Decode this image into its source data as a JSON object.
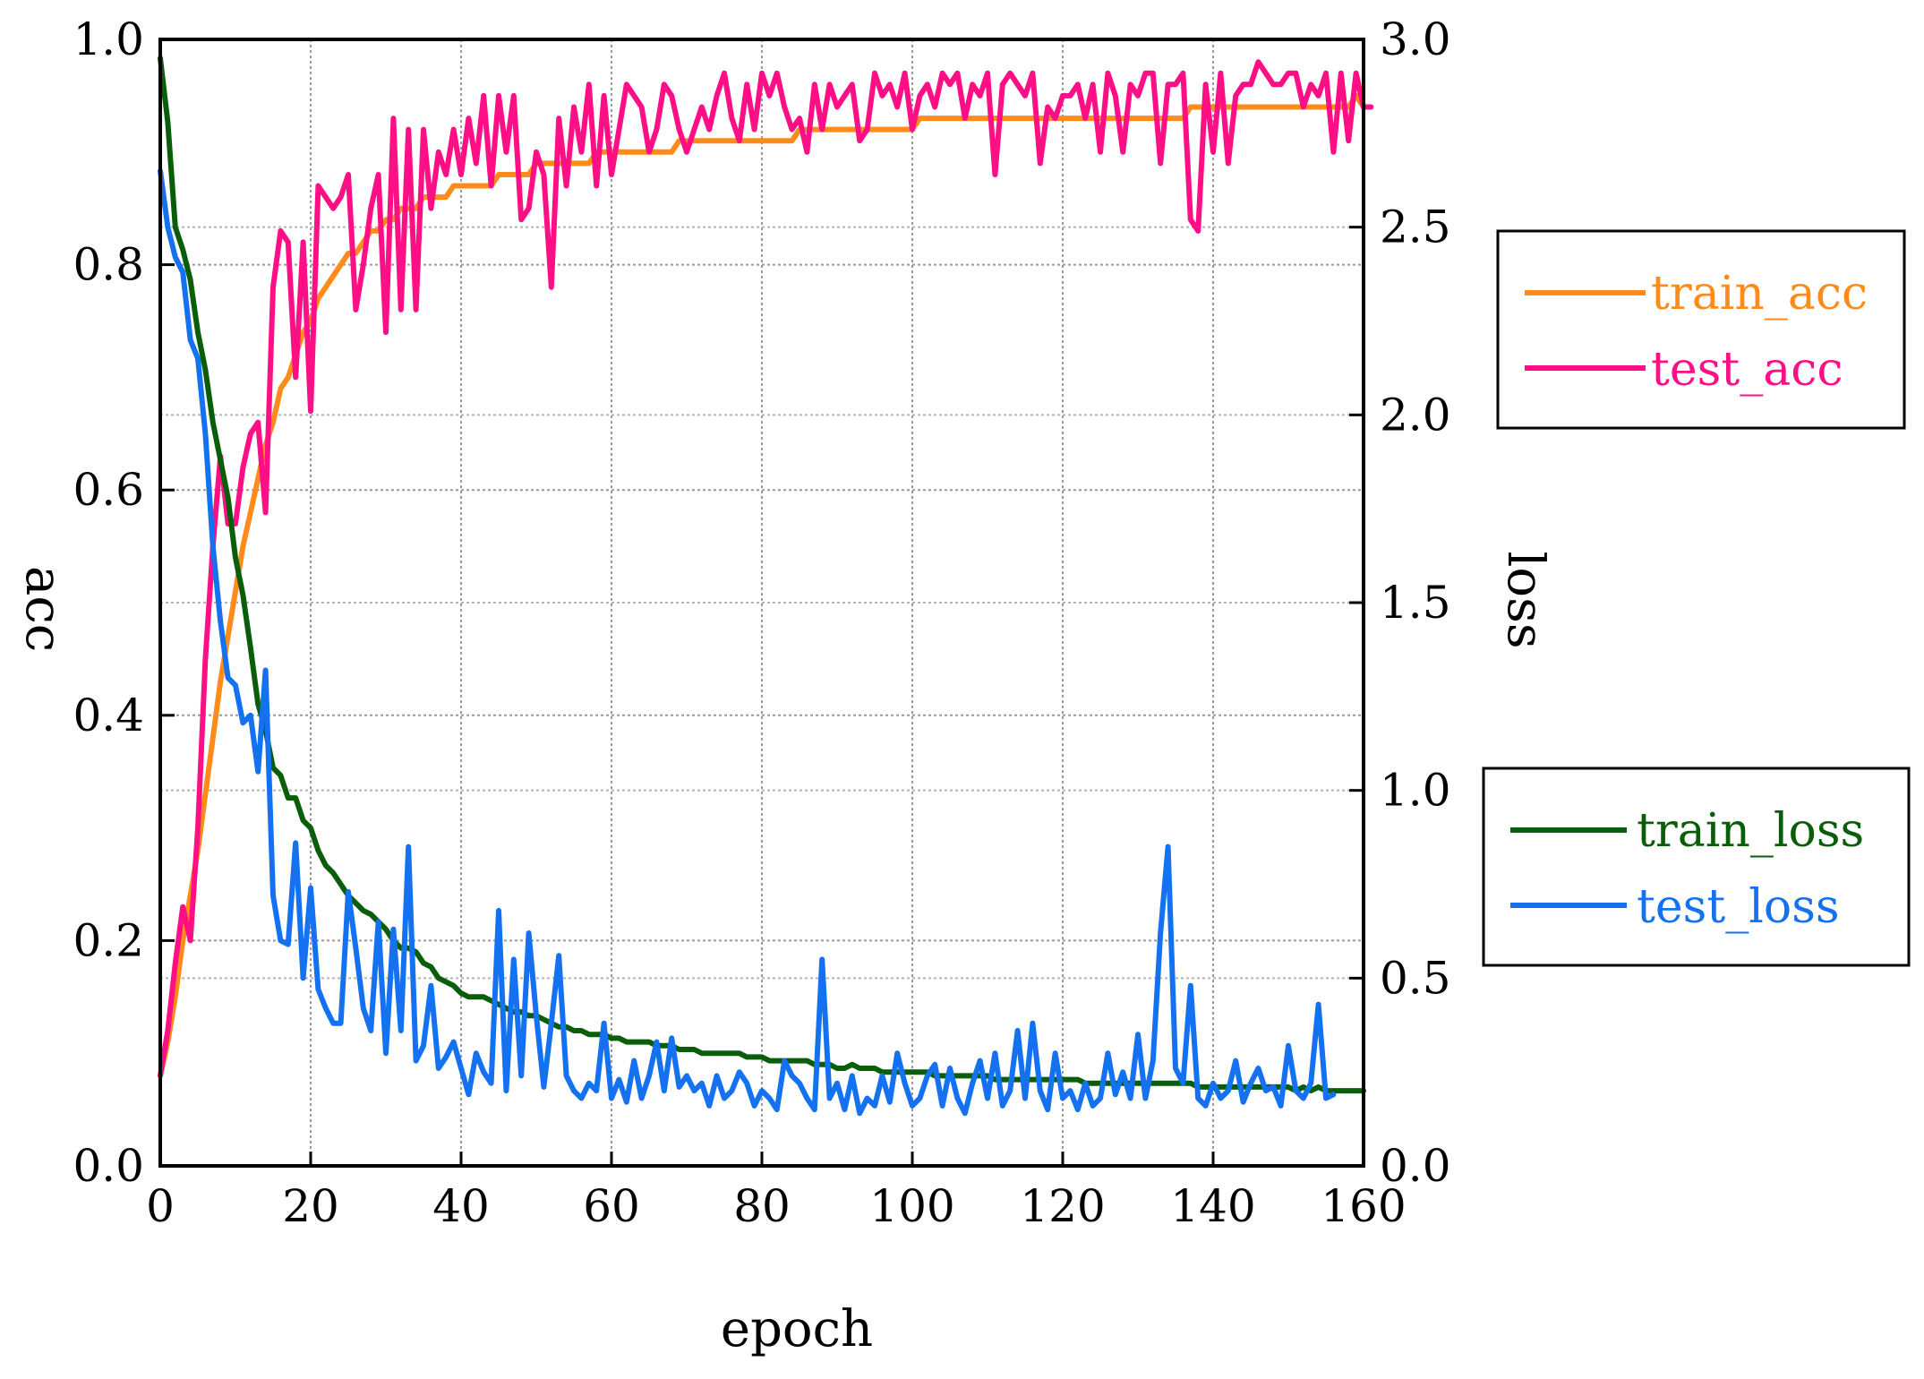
{
  "chart_data": {
    "type": "line",
    "xlabel": "epoch",
    "ylabel_left": "acc",
    "ylabel_right": "loss",
    "xlim": [
      0,
      160
    ],
    "ylim_left": [
      0,
      1
    ],
    "ylim_right": [
      0,
      3
    ],
    "x_ticks": [
      "0",
      "20",
      "40",
      "60",
      "80",
      "100",
      "120",
      "140",
      "160"
    ],
    "y_left_ticks": [
      "0.0",
      "0.2",
      "0.4",
      "0.6",
      "0.8",
      "1.0"
    ],
    "y_right_ticks": [
      "0.0",
      "0.5",
      "1.0",
      "1.5",
      "2.0",
      "2.5",
      "3.0"
    ],
    "grid": true,
    "legends": [
      {
        "position": "upper-right",
        "entries": [
          {
            "label": "train_acc",
            "color": "#ff8c1a"
          },
          {
            "label": "test_acc",
            "color": "#ff0f86"
          }
        ]
      },
      {
        "position": "lower-right",
        "entries": [
          {
            "label": "train_loss",
            "color": "#0a5e0a"
          },
          {
            "label": "test_loss",
            "color": "#1471f0"
          }
        ]
      }
    ],
    "series": [
      {
        "name": "train_acc",
        "axis": "left",
        "color": "#ff8c1a",
        "x_start": 0,
        "x_step": 1,
        "values": [
          0.08,
          0.11,
          0.15,
          0.2,
          0.24,
          0.28,
          0.33,
          0.38,
          0.43,
          0.47,
          0.51,
          0.55,
          0.58,
          0.61,
          0.64,
          0.66,
          0.69,
          0.7,
          0.72,
          0.74,
          0.75,
          0.77,
          0.78,
          0.79,
          0.8,
          0.81,
          0.81,
          0.82,
          0.83,
          0.83,
          0.84,
          0.84,
          0.85,
          0.85,
          0.85,
          0.86,
          0.86,
          0.86,
          0.86,
          0.87,
          0.87,
          0.87,
          0.87,
          0.87,
          0.87,
          0.88,
          0.88,
          0.88,
          0.88,
          0.88,
          0.89,
          0.89,
          0.89,
          0.89,
          0.89,
          0.89,
          0.89,
          0.89,
          0.9,
          0.9,
          0.9,
          0.9,
          0.9,
          0.9,
          0.9,
          0.9,
          0.9,
          0.9,
          0.9,
          0.91,
          0.91,
          0.91,
          0.91,
          0.91,
          0.91,
          0.91,
          0.91,
          0.91,
          0.91,
          0.91,
          0.91,
          0.91,
          0.91,
          0.91,
          0.91,
          0.92,
          0.92,
          0.92,
          0.92,
          0.92,
          0.92,
          0.92,
          0.92,
          0.92,
          0.92,
          0.92,
          0.92,
          0.92,
          0.92,
          0.92,
          0.92,
          0.93,
          0.93,
          0.93,
          0.93,
          0.93,
          0.93,
          0.93,
          0.93,
          0.93,
          0.93,
          0.93,
          0.93,
          0.93,
          0.93,
          0.93,
          0.93,
          0.93,
          0.93,
          0.93,
          0.93,
          0.93,
          0.93,
          0.93,
          0.93,
          0.93,
          0.93,
          0.93,
          0.93,
          0.93,
          0.93,
          0.93,
          0.93,
          0.93,
          0.93,
          0.93,
          0.93,
          0.94,
          0.94,
          0.94,
          0.94,
          0.94,
          0.94,
          0.94,
          0.94,
          0.94,
          0.94,
          0.94,
          0.94,
          0.94,
          0.94,
          0.94,
          0.94,
          0.94,
          0.94,
          0.94,
          0.94,
          0.94,
          0.94,
          0.95,
          0.94
        ]
      },
      {
        "name": "test_acc",
        "axis": "left",
        "color": "#ff0f86",
        "x_start": 0,
        "x_step": 1,
        "values": [
          0.08,
          0.12,
          0.18,
          0.23,
          0.2,
          0.3,
          0.45,
          0.55,
          0.63,
          0.57,
          0.57,
          0.62,
          0.65,
          0.66,
          0.58,
          0.78,
          0.83,
          0.82,
          0.7,
          0.82,
          0.67,
          0.87,
          0.86,
          0.85,
          0.86,
          0.88,
          0.76,
          0.8,
          0.85,
          0.88,
          0.74,
          0.93,
          0.76,
          0.92,
          0.76,
          0.92,
          0.85,
          0.9,
          0.88,
          0.92,
          0.88,
          0.93,
          0.89,
          0.95,
          0.87,
          0.95,
          0.9,
          0.95,
          0.84,
          0.85,
          0.9,
          0.88,
          0.78,
          0.93,
          0.87,
          0.94,
          0.9,
          0.96,
          0.87,
          0.95,
          0.88,
          0.92,
          0.96,
          0.95,
          0.94,
          0.9,
          0.92,
          0.96,
          0.95,
          0.92,
          0.9,
          0.92,
          0.94,
          0.92,
          0.95,
          0.97,
          0.93,
          0.91,
          0.96,
          0.92,
          0.97,
          0.95,
          0.97,
          0.94,
          0.92,
          0.93,
          0.9,
          0.96,
          0.92,
          0.96,
          0.94,
          0.95,
          0.96,
          0.91,
          0.92,
          0.97,
          0.95,
          0.96,
          0.94,
          0.97,
          0.92,
          0.95,
          0.96,
          0.94,
          0.97,
          0.96,
          0.97,
          0.93,
          0.96,
          0.95,
          0.97,
          0.88,
          0.96,
          0.97,
          0.96,
          0.95,
          0.97,
          0.89,
          0.94,
          0.93,
          0.95,
          0.95,
          0.96,
          0.93,
          0.96,
          0.9,
          0.97,
          0.95,
          0.9,
          0.96,
          0.95,
          0.97,
          0.97,
          0.89,
          0.96,
          0.96,
          0.97,
          0.84,
          0.83,
          0.96,
          0.9,
          0.97,
          0.89,
          0.95,
          0.96,
          0.96,
          0.98,
          0.97,
          0.96,
          0.96,
          0.97,
          0.97,
          0.94,
          0.96,
          0.95,
          0.97,
          0.9,
          0.97,
          0.91,
          0.97,
          0.94,
          0.94
        ]
      },
      {
        "name": "train_loss",
        "axis": "right",
        "color": "#0a5e0a",
        "x_start": 0,
        "x_step": 1,
        "values": [
          2.95,
          2.78,
          2.5,
          2.44,
          2.36,
          2.22,
          2.12,
          1.98,
          1.88,
          1.78,
          1.62,
          1.52,
          1.38,
          1.23,
          1.16,
          1.06,
          1.04,
          0.98,
          0.98,
          0.92,
          0.9,
          0.84,
          0.8,
          0.78,
          0.75,
          0.72,
          0.7,
          0.68,
          0.67,
          0.65,
          0.63,
          0.6,
          0.58,
          0.58,
          0.57,
          0.54,
          0.53,
          0.5,
          0.49,
          0.48,
          0.46,
          0.45,
          0.45,
          0.45,
          0.44,
          0.43,
          0.42,
          0.41,
          0.41,
          0.4,
          0.4,
          0.39,
          0.38,
          0.37,
          0.37,
          0.36,
          0.36,
          0.35,
          0.35,
          0.35,
          0.34,
          0.34,
          0.33,
          0.33,
          0.33,
          0.33,
          0.32,
          0.32,
          0.32,
          0.31,
          0.31,
          0.31,
          0.3,
          0.3,
          0.3,
          0.3,
          0.3,
          0.3,
          0.29,
          0.29,
          0.29,
          0.28,
          0.28,
          0.28,
          0.28,
          0.28,
          0.28,
          0.27,
          0.27,
          0.27,
          0.26,
          0.26,
          0.27,
          0.26,
          0.26,
          0.26,
          0.25,
          0.25,
          0.25,
          0.25,
          0.25,
          0.25,
          0.25,
          0.24,
          0.24,
          0.24,
          0.24,
          0.24,
          0.24,
          0.24,
          0.24,
          0.23,
          0.23,
          0.23,
          0.23,
          0.23,
          0.23,
          0.23,
          0.23,
          0.23,
          0.23,
          0.23,
          0.23,
          0.22,
          0.22,
          0.22,
          0.22,
          0.22,
          0.22,
          0.22,
          0.22,
          0.22,
          0.22,
          0.22,
          0.22,
          0.22,
          0.22,
          0.22,
          0.21,
          0.21,
          0.21,
          0.21,
          0.21,
          0.21,
          0.21,
          0.21,
          0.21,
          0.21,
          0.21,
          0.21,
          0.21,
          0.2,
          0.21,
          0.2,
          0.21,
          0.2,
          0.2,
          0.2,
          0.2,
          0.2,
          0.2
        ]
      },
      {
        "name": "test_loss",
        "axis": "right",
        "color": "#1471f0",
        "x_start": 0,
        "x_step": 1,
        "values": [
          2.65,
          2.5,
          2.42,
          2.38,
          2.2,
          2.15,
          1.95,
          1.65,
          1.45,
          1.3,
          1.28,
          1.18,
          1.2,
          1.05,
          1.32,
          0.72,
          0.6,
          0.59,
          0.86,
          0.5,
          0.74,
          0.47,
          0.42,
          0.38,
          0.38,
          0.73,
          0.58,
          0.42,
          0.36,
          0.65,
          0.3,
          0.63,
          0.36,
          0.85,
          0.28,
          0.32,
          0.48,
          0.26,
          0.29,
          0.33,
          0.26,
          0.19,
          0.3,
          0.25,
          0.22,
          0.68,
          0.2,
          0.55,
          0.24,
          0.62,
          0.4,
          0.21,
          0.38,
          0.56,
          0.24,
          0.2,
          0.18,
          0.22,
          0.2,
          0.38,
          0.18,
          0.23,
          0.17,
          0.28,
          0.18,
          0.24,
          0.33,
          0.2,
          0.34,
          0.21,
          0.24,
          0.2,
          0.22,
          0.16,
          0.24,
          0.18,
          0.2,
          0.25,
          0.22,
          0.16,
          0.2,
          0.18,
          0.15,
          0.28,
          0.24,
          0.22,
          0.18,
          0.15,
          0.55,
          0.18,
          0.22,
          0.15,
          0.24,
          0.14,
          0.18,
          0.16,
          0.24,
          0.17,
          0.3,
          0.22,
          0.16,
          0.18,
          0.24,
          0.27,
          0.16,
          0.26,
          0.18,
          0.14,
          0.22,
          0.28,
          0.18,
          0.3,
          0.16,
          0.2,
          0.36,
          0.18,
          0.38,
          0.2,
          0.15,
          0.3,
          0.18,
          0.2,
          0.15,
          0.22,
          0.16,
          0.18,
          0.3,
          0.19,
          0.25,
          0.18,
          0.35,
          0.18,
          0.28,
          0.62,
          0.85,
          0.26,
          0.22,
          0.48,
          0.18,
          0.16,
          0.22,
          0.18,
          0.2,
          0.28,
          0.17,
          0.22,
          0.26,
          0.2,
          0.21,
          0.16,
          0.32,
          0.2,
          0.18,
          0.22,
          0.43,
          0.18,
          0.19
        ]
      }
    ]
  }
}
